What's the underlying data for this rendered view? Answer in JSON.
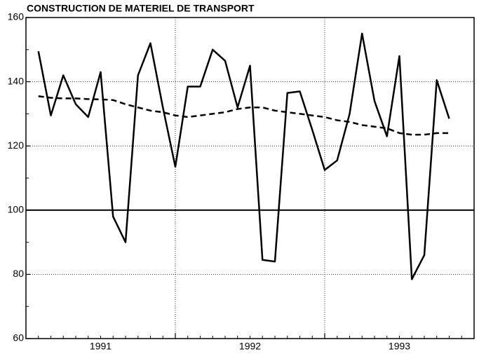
{
  "chart_data": {
    "type": "line",
    "title": "CONSTRUCTION DE MATERIEL DE TRANSPORT",
    "x": [
      1,
      2,
      3,
      4,
      5,
      6,
      7,
      8,
      9,
      10,
      11,
      12,
      13,
      14,
      15,
      16,
      17,
      18,
      19,
      20,
      21,
      22,
      23,
      24,
      25,
      26,
      27,
      28,
      29,
      30,
      31,
      32,
      33,
      34
    ],
    "xlim": [
      0,
      36
    ],
    "xticks": [
      {
        "value": 6,
        "label": "1991"
      },
      {
        "value": 18,
        "label": "1992"
      },
      {
        "value": 30,
        "label": "1993"
      }
    ],
    "xgrid": [
      12,
      24
    ],
    "ylim": [
      60,
      160
    ],
    "yticks": [
      60,
      80,
      100,
      120,
      140,
      160
    ],
    "grid": true,
    "reference_line": 100,
    "series": [
      {
        "color": "#000000",
        "style": "solid",
        "values": [
          149.5,
          129.5,
          142,
          133,
          129,
          143,
          98,
          90,
          142,
          152,
          132,
          113.5,
          138.5,
          138.5,
          150,
          146.5,
          132,
          145,
          84.5,
          84,
          136.5,
          137,
          125,
          112.5,
          115.5,
          130,
          155,
          134,
          123,
          148,
          78.5,
          86,
          140.5,
          128.5
        ]
      },
      {
        "color": "#000000",
        "style": "dashed",
        "values": [
          135.5,
          135,
          134.8,
          134.8,
          134.6,
          134.5,
          134.3,
          133,
          132,
          131,
          130.5,
          129.5,
          129,
          129.5,
          130,
          130.5,
          131.5,
          132,
          132,
          131,
          130.5,
          130,
          129.5,
          129,
          128,
          127.5,
          126.5,
          126,
          125.5,
          124,
          123.5,
          123.5,
          124,
          124
        ]
      }
    ]
  }
}
